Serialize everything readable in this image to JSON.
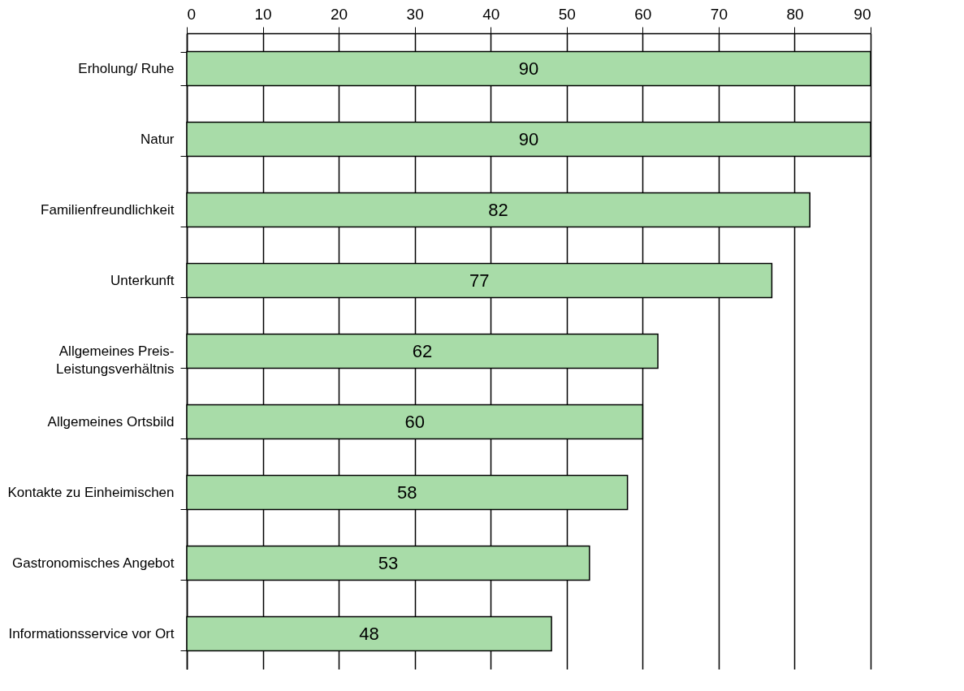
{
  "chart_data": {
    "type": "bar",
    "orientation": "horizontal",
    "categories": [
      "Erholung/ Ruhe",
      "Natur",
      "Familienfreundlichkeit",
      "Unterkunft",
      "Allgemeines Preis-\nLeistungsverhältnis",
      "Allgemeines Ortsbild",
      "Kontakte zu Einheimischen",
      "Gastronomisches Angebot",
      "Informationsservice vor Ort"
    ],
    "values": [
      90,
      90,
      82,
      77,
      62,
      60,
      58,
      53,
      48
    ],
    "color": "#a8dca8",
    "xlim": [
      0,
      90
    ],
    "xticks": [
      0,
      10,
      20,
      30,
      40,
      50,
      60,
      70,
      80,
      90
    ],
    "grid": "x",
    "data_labels": true
  }
}
